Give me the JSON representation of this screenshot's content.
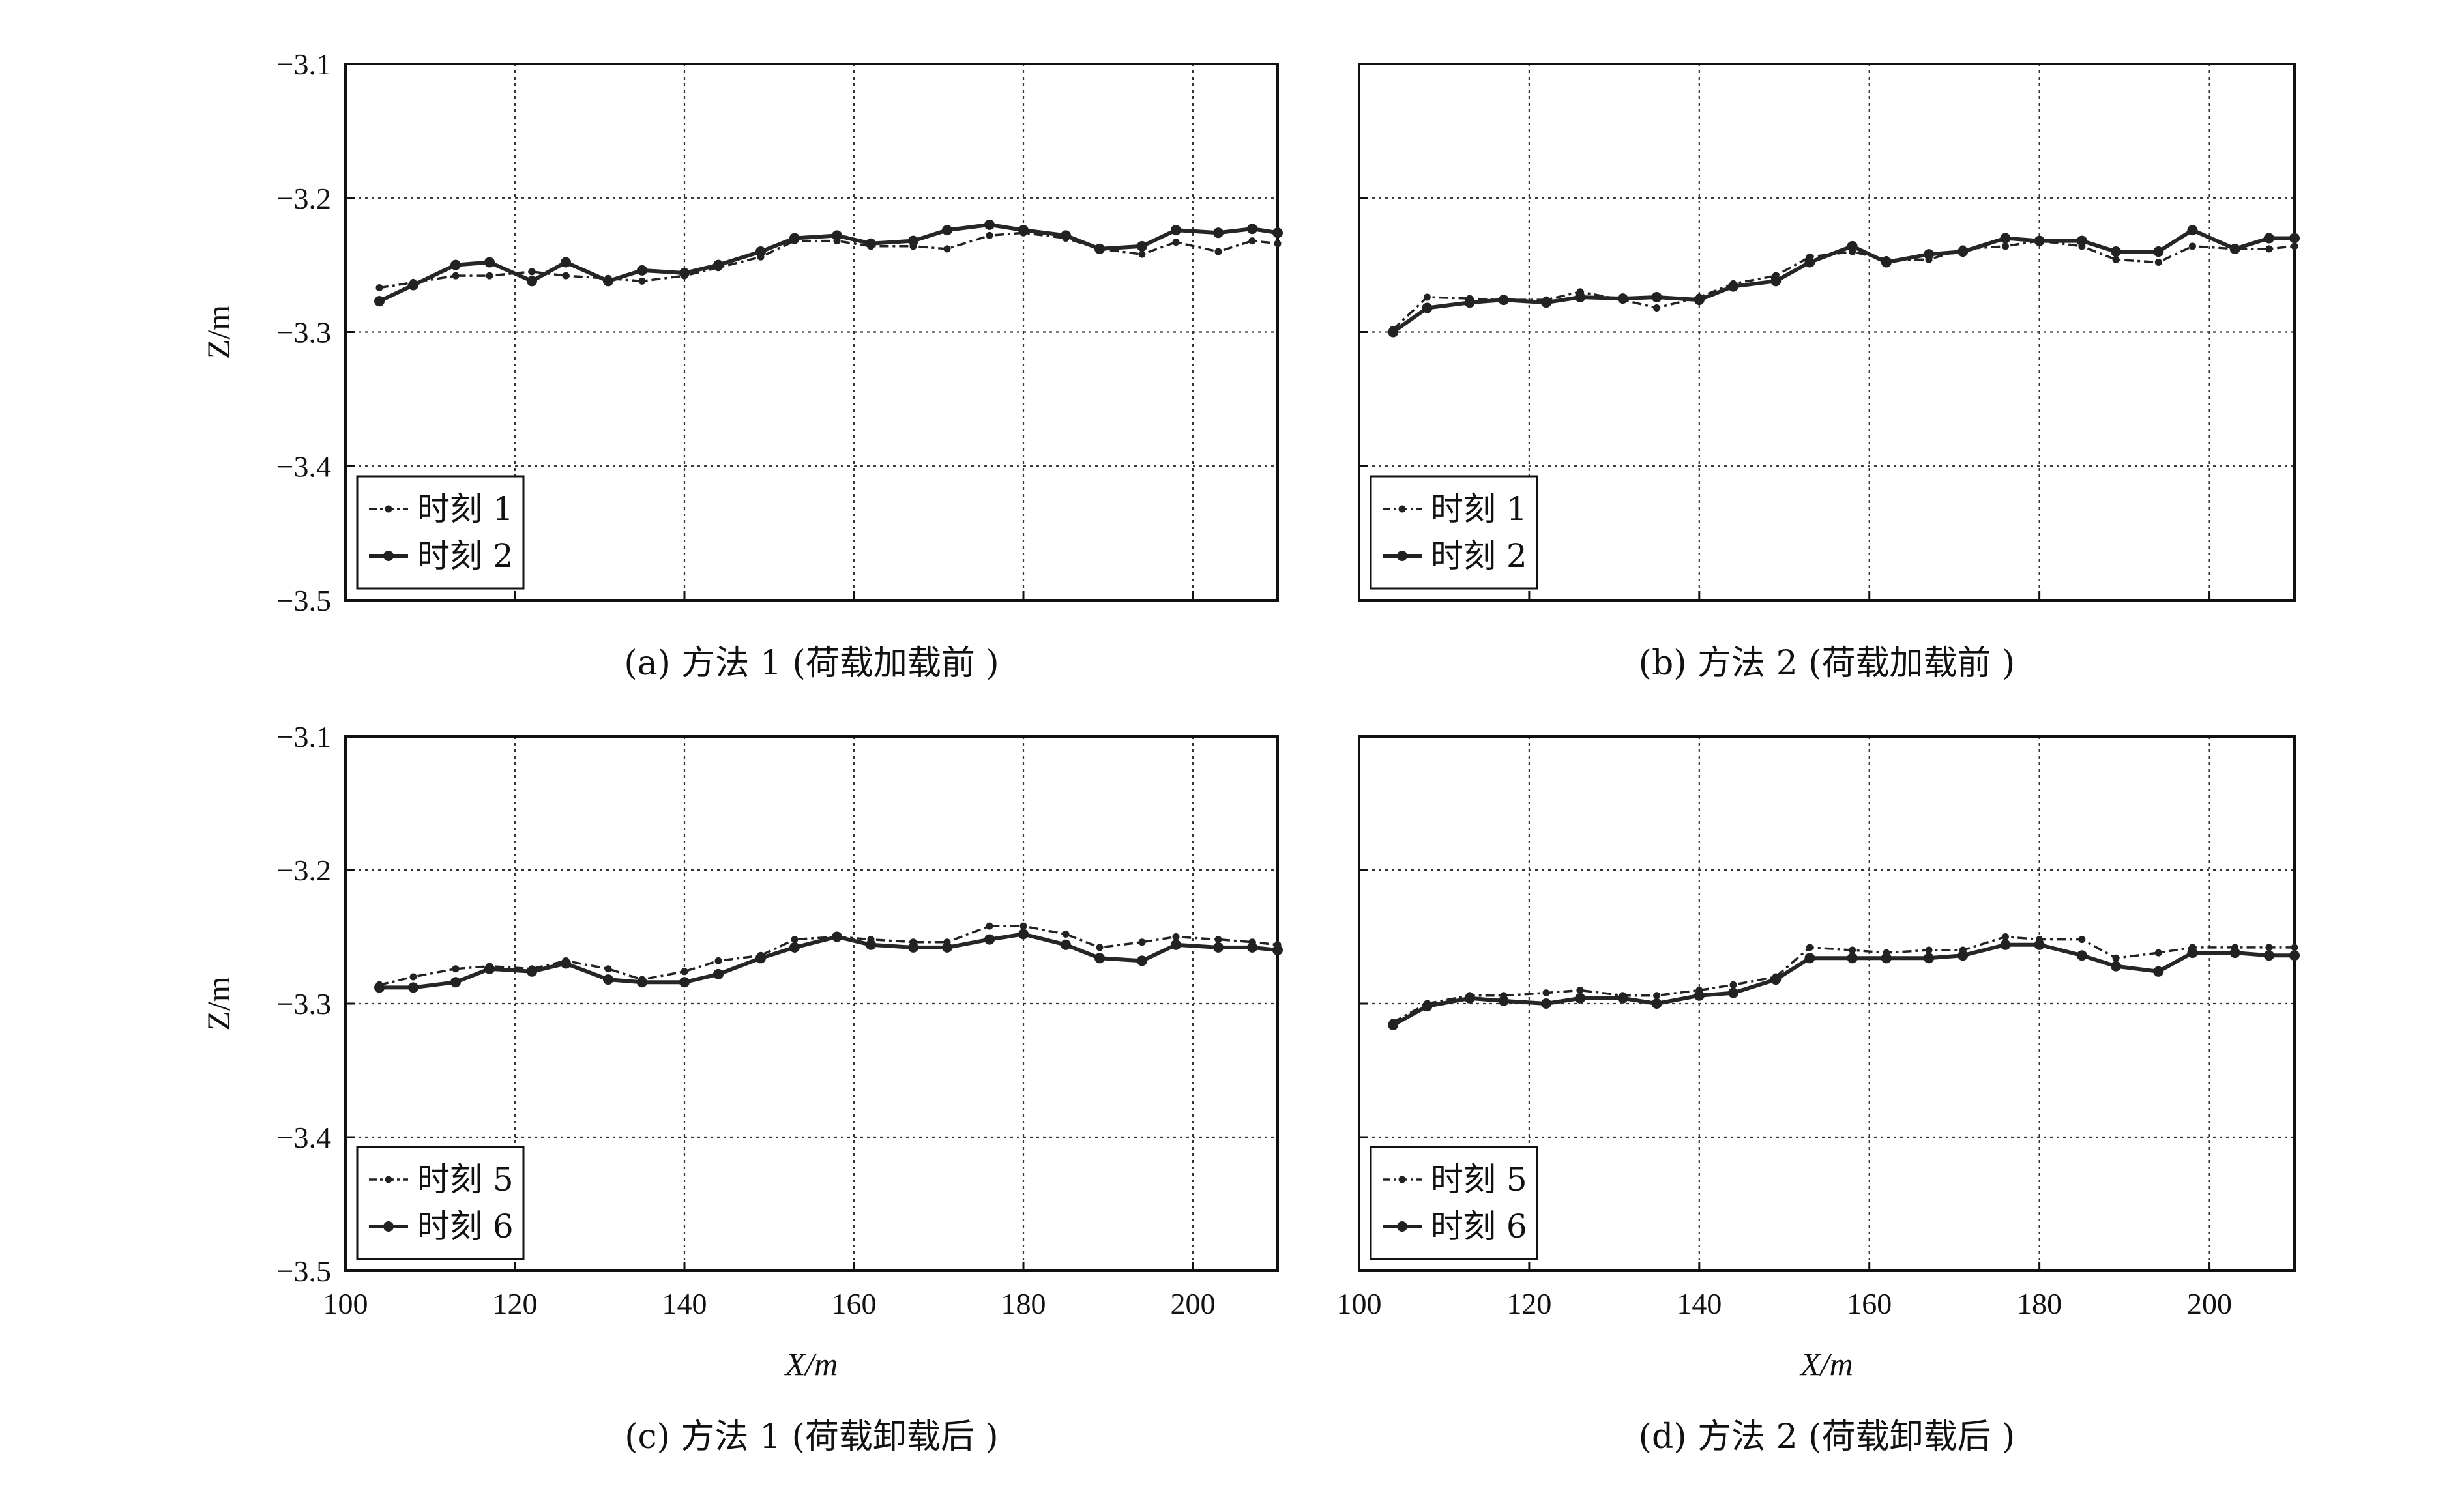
{
  "chart_data": [
    {
      "type": "line",
      "panel": "a",
      "caption": "(a) 方法 1 (荷载加载前 )",
      "ylabel": "Z/m",
      "xlabel": "",
      "xlim": [
        100,
        210
      ],
      "ylim": [
        -3.5,
        -3.1
      ],
      "xticks": [
        100,
        120,
        140,
        160,
        180,
        200
      ],
      "xtick_labels": [],
      "yticks": [
        -3.1,
        -3.2,
        -3.3,
        -3.4,
        -3.5
      ],
      "ytick_labels": [
        "−3.1",
        "−3.2",
        "−3.3",
        "−3.4",
        "−3.5"
      ],
      "grid": true,
      "legend_position": "bottom-left",
      "series": [
        {
          "name": "时刻 1",
          "style": "dashdot",
          "x": [
            104,
            108,
            113,
            117,
            122,
            126,
            131,
            135,
            140,
            144,
            149,
            153,
            158,
            162,
            167,
            171,
            176,
            180,
            185,
            189,
            194,
            198,
            203,
            207,
            210
          ],
          "y": [
            -3.267,
            -3.263,
            -3.258,
            -3.258,
            -3.255,
            -3.258,
            -3.26,
            -3.262,
            -3.258,
            -3.252,
            -3.244,
            -3.232,
            -3.232,
            -3.236,
            -3.236,
            -3.238,
            -3.228,
            -3.226,
            -3.23,
            -3.238,
            -3.242,
            -3.233,
            -3.24,
            -3.232,
            -3.234
          ]
        },
        {
          "name": "时刻 2",
          "style": "solid",
          "x": [
            104,
            108,
            113,
            117,
            122,
            126,
            131,
            135,
            140,
            144,
            149,
            153,
            158,
            162,
            167,
            171,
            176,
            180,
            185,
            189,
            194,
            198,
            203,
            207,
            210
          ],
          "y": [
            -3.277,
            -3.265,
            -3.25,
            -3.248,
            -3.262,
            -3.248,
            -3.262,
            -3.254,
            -3.256,
            -3.25,
            -3.24,
            -3.23,
            -3.228,
            -3.234,
            -3.232,
            -3.224,
            -3.22,
            -3.224,
            -3.228,
            -3.238,
            -3.236,
            -3.224,
            -3.226,
            -3.223,
            -3.226
          ]
        }
      ]
    },
    {
      "type": "line",
      "panel": "b",
      "caption": "(b) 方法 2 (荷载加载前 )",
      "ylabel": "",
      "xlabel": "",
      "xlim": [
        100,
        210
      ],
      "ylim": [
        -3.5,
        -3.1
      ],
      "xticks": [
        100,
        120,
        140,
        160,
        180,
        200
      ],
      "xtick_labels": [],
      "yticks": [
        -3.1,
        -3.2,
        -3.3,
        -3.4,
        -3.5
      ],
      "ytick_labels": [],
      "grid": true,
      "legend_position": "bottom-left",
      "series": [
        {
          "name": "时刻 1",
          "style": "dashdot",
          "x": [
            104,
            108,
            113,
            117,
            122,
            126,
            131,
            135,
            140,
            144,
            149,
            153,
            158,
            162,
            167,
            171,
            176,
            180,
            185,
            189,
            194,
            198,
            203,
            207,
            210
          ],
          "y": [
            -3.298,
            -3.274,
            -3.275,
            -3.276,
            -3.276,
            -3.27,
            -3.276,
            -3.282,
            -3.274,
            -3.264,
            -3.258,
            -3.244,
            -3.24,
            -3.246,
            -3.246,
            -3.238,
            -3.236,
            -3.232,
            -3.236,
            -3.246,
            -3.248,
            -3.236,
            -3.238,
            -3.238,
            -3.236
          ]
        },
        {
          "name": "时刻 2",
          "style": "solid",
          "x": [
            104,
            108,
            113,
            117,
            122,
            126,
            131,
            135,
            140,
            144,
            149,
            153,
            158,
            162,
            167,
            171,
            176,
            180,
            185,
            189,
            194,
            198,
            203,
            207,
            210
          ],
          "y": [
            -3.3,
            -3.282,
            -3.278,
            -3.276,
            -3.278,
            -3.274,
            -3.275,
            -3.274,
            -3.276,
            -3.266,
            -3.262,
            -3.248,
            -3.236,
            -3.248,
            -3.242,
            -3.24,
            -3.23,
            -3.232,
            -3.232,
            -3.24,
            -3.24,
            -3.224,
            -3.238,
            -3.23,
            -3.23
          ]
        }
      ]
    },
    {
      "type": "line",
      "panel": "c",
      "caption": "(c) 方法 1 (荷载卸载后 )",
      "ylabel": "Z/m",
      "xlabel": "X/m",
      "xlim": [
        100,
        210
      ],
      "ylim": [
        -3.5,
        -3.1
      ],
      "xticks": [
        100,
        120,
        140,
        160,
        180,
        200
      ],
      "xtick_labels": [
        "100",
        "120",
        "140",
        "160",
        "180",
        "200"
      ],
      "yticks": [
        -3.1,
        -3.2,
        -3.3,
        -3.4,
        -3.5
      ],
      "ytick_labels": [
        "−3.1",
        "−3.2",
        "−3.3",
        "−3.4",
        "−3.5"
      ],
      "grid": true,
      "legend_position": "bottom-left",
      "series": [
        {
          "name": "时刻 5",
          "style": "dashdot",
          "x": [
            104,
            108,
            113,
            117,
            122,
            126,
            131,
            135,
            140,
            144,
            149,
            153,
            158,
            162,
            167,
            171,
            176,
            180,
            185,
            189,
            194,
            198,
            203,
            207,
            210
          ],
          "y": [
            -3.286,
            -3.28,
            -3.274,
            -3.272,
            -3.274,
            -3.268,
            -3.274,
            -3.282,
            -3.276,
            -3.268,
            -3.264,
            -3.252,
            -3.25,
            -3.252,
            -3.254,
            -3.254,
            -3.242,
            -3.242,
            -3.248,
            -3.258,
            -3.254,
            -3.25,
            -3.252,
            -3.254,
            -3.256
          ]
        },
        {
          "name": "时刻 6",
          "style": "solid",
          "x": [
            104,
            108,
            113,
            117,
            122,
            126,
            131,
            135,
            140,
            144,
            149,
            153,
            158,
            162,
            167,
            171,
            176,
            180,
            185,
            189,
            194,
            198,
            203,
            207,
            210
          ],
          "y": [
            -3.288,
            -3.288,
            -3.284,
            -3.274,
            -3.276,
            -3.27,
            -3.282,
            -3.284,
            -3.284,
            -3.278,
            -3.266,
            -3.258,
            -3.25,
            -3.256,
            -3.258,
            -3.258,
            -3.252,
            -3.248,
            -3.256,
            -3.266,
            -3.268,
            -3.256,
            -3.258,
            -3.258,
            -3.26
          ]
        }
      ]
    },
    {
      "type": "line",
      "panel": "d",
      "caption": "(d) 方法 2 (荷载卸载后 )",
      "ylabel": "",
      "xlabel": "X/m",
      "xlim": [
        100,
        210
      ],
      "ylim": [
        -3.5,
        -3.1
      ],
      "xticks": [
        100,
        120,
        140,
        160,
        180,
        200
      ],
      "xtick_labels": [
        "100",
        "120",
        "140",
        "160",
        "180",
        "200"
      ],
      "yticks": [
        -3.1,
        -3.2,
        -3.3,
        -3.4,
        -3.5
      ],
      "ytick_labels": [],
      "grid": true,
      "legend_position": "bottom-left",
      "series": [
        {
          "name": "时刻 5",
          "style": "dashdot",
          "x": [
            104,
            108,
            113,
            117,
            122,
            126,
            131,
            135,
            140,
            144,
            149,
            153,
            158,
            162,
            167,
            171,
            176,
            180,
            185,
            189,
            194,
            198,
            203,
            207,
            210
          ],
          "y": [
            -3.314,
            -3.3,
            -3.294,
            -3.294,
            -3.292,
            -3.29,
            -3.294,
            -3.294,
            -3.29,
            -3.286,
            -3.28,
            -3.258,
            -3.26,
            -3.262,
            -3.26,
            -3.26,
            -3.25,
            -3.252,
            -3.252,
            -3.266,
            -3.262,
            -3.258,
            -3.258,
            -3.258,
            -3.258
          ]
        },
        {
          "name": "时刻 6",
          "style": "solid",
          "x": [
            104,
            108,
            113,
            117,
            122,
            126,
            131,
            135,
            140,
            144,
            149,
            153,
            158,
            162,
            167,
            171,
            176,
            180,
            185,
            189,
            194,
            198,
            203,
            207,
            210
          ],
          "y": [
            -3.316,
            -3.302,
            -3.296,
            -3.298,
            -3.3,
            -3.296,
            -3.296,
            -3.3,
            -3.294,
            -3.292,
            -3.282,
            -3.266,
            -3.266,
            -3.266,
            -3.266,
            -3.264,
            -3.256,
            -3.256,
            -3.264,
            -3.272,
            -3.276,
            -3.262,
            -3.262,
            -3.264,
            -3.264
          ]
        }
      ]
    }
  ]
}
